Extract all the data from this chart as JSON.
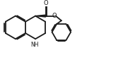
{
  "bg_color": "#ffffff",
  "line_color": "#1a1a1a",
  "line_width": 1.3,
  "font_size_label": 5.5,
  "nh_label": "NH",
  "o_label": "O",
  "wedge_color": "#1a1a1a",
  "fig_width": 1.74,
  "fig_height": 0.85
}
